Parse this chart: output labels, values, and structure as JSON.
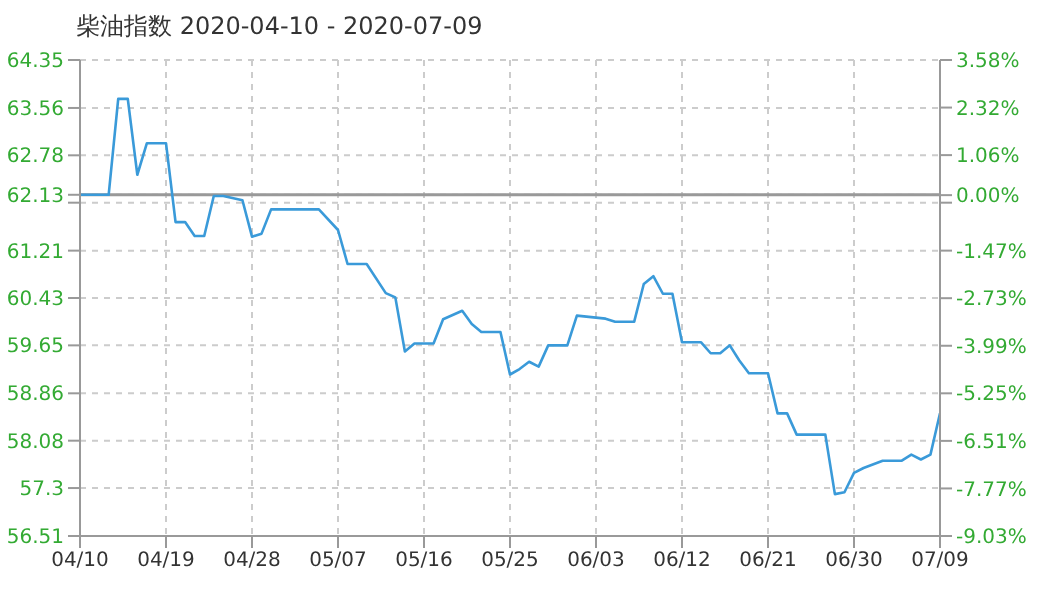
{
  "chart_data": {
    "type": "line",
    "title": "柴油指数 2020-04-10 - 2020-07-09",
    "x": [
      "2020-04-10",
      "2020-04-13",
      "2020-04-14",
      "2020-04-15",
      "2020-04-16",
      "2020-04-17",
      "2020-04-19",
      "2020-04-20",
      "2020-04-21",
      "2020-04-22",
      "2020-04-23",
      "2020-04-24",
      "2020-04-25",
      "2020-04-27",
      "2020-04-28",
      "2020-04-29",
      "2020-04-30",
      "2020-05-05",
      "2020-05-07",
      "2020-05-08",
      "2020-05-10",
      "2020-05-12",
      "2020-05-13",
      "2020-05-14",
      "2020-05-15",
      "2020-05-17",
      "2020-05-18",
      "2020-05-20",
      "2020-05-21",
      "2020-05-22",
      "2020-05-24",
      "2020-05-25",
      "2020-05-26",
      "2020-05-27",
      "2020-05-28",
      "2020-05-29",
      "2020-05-31",
      "2020-06-01",
      "2020-06-04",
      "2020-06-05",
      "2020-06-07",
      "2020-06-08",
      "2020-06-09",
      "2020-06-10",
      "2020-06-11",
      "2020-06-12",
      "2020-06-14",
      "2020-06-15",
      "2020-06-16",
      "2020-06-17",
      "2020-06-18",
      "2020-06-19",
      "2020-06-21",
      "2020-06-22",
      "2020-06-23",
      "2020-06-24",
      "2020-06-27",
      "2020-06-28",
      "2020-06-29",
      "2020-06-30",
      "2020-07-01",
      "2020-07-03",
      "2020-07-05",
      "2020-07-06",
      "2020-07-07",
      "2020-07-08",
      "2020-07-09"
    ],
    "series": [
      {
        "color": "#3a9ad9",
        "values": [
          62.13,
          62.13,
          63.71,
          63.71,
          62.46,
          62.98,
          62.98,
          61.68,
          61.68,
          61.45,
          61.45,
          62.11,
          62.11,
          62.04,
          61.44,
          61.49,
          61.89,
          61.89,
          61.55,
          60.99,
          60.99,
          60.51,
          60.44,
          59.55,
          59.68,
          59.68,
          60.08,
          60.22,
          60.0,
          59.87,
          59.87,
          59.17,
          59.26,
          59.38,
          59.3,
          59.65,
          59.65,
          60.14,
          60.09,
          60.04,
          60.04,
          60.66,
          60.79,
          60.5,
          60.5,
          59.7,
          59.7,
          59.52,
          59.52,
          59.65,
          59.4,
          59.19,
          59.19,
          58.53,
          58.53,
          58.18,
          58.18,
          57.2,
          57.23,
          57.55,
          57.63,
          57.75,
          57.75,
          57.85,
          57.77,
          57.85,
          58.53
        ]
      }
    ],
    "xlim": [
      "2020-04-10",
      "2020-07-09"
    ],
    "xticks": [
      {
        "value": "2020-04-10",
        "label": "04/10"
      },
      {
        "value": "2020-04-19",
        "label": "04/19"
      },
      {
        "value": "2020-04-28",
        "label": "04/28"
      },
      {
        "value": "2020-05-07",
        "label": "05/07"
      },
      {
        "value": "2020-05-16",
        "label": "05/16"
      },
      {
        "value": "2020-05-25",
        "label": "05/25"
      },
      {
        "value": "2020-06-03",
        "label": "06/03"
      },
      {
        "value": "2020-06-12",
        "label": "06/12"
      },
      {
        "value": "2020-06-21",
        "label": "06/21"
      },
      {
        "value": "2020-06-30",
        "label": "06/30"
      },
      {
        "value": "2020-07-09",
        "label": "07/09"
      }
    ],
    "ylim": [
      56.51,
      64.35
    ],
    "yticks": [
      56.51,
      57.3,
      58.08,
      58.86,
      59.65,
      60.43,
      61.21,
      {
        "value": 62.0,
        "label": null
      },
      62.13,
      62.78,
      63.56,
      64.35
    ],
    "y2lim": [
      -9.03,
      3.58
    ],
    "y2ticks": [
      {
        "value": -9.03,
        "label": "-9.03%"
      },
      {
        "value": -7.77,
        "label": "-7.77%"
      },
      {
        "value": -6.51,
        "label": "-6.51%"
      },
      {
        "value": -5.25,
        "label": "-5.25%"
      },
      {
        "value": -3.99,
        "label": "-3.99%"
      },
      {
        "value": -2.73,
        "label": "-2.73%"
      },
      {
        "value": -1.47,
        "label": "-1.47%"
      },
      {
        "value": -0.2,
        "label": null
      },
      {
        "value": 0.0,
        "label": "0.00%"
      },
      {
        "value": 1.06,
        "label": "1.06%"
      },
      {
        "value": 2.32,
        "label": "2.32%"
      },
      {
        "value": 3.58,
        "label": "3.58%"
      }
    ],
    "ref_lines": [
      {
        "axis": "y",
        "value": 62.13,
        "color": "#999999"
      }
    ],
    "grid": true,
    "marker": "none",
    "line_style": "solid"
  }
}
